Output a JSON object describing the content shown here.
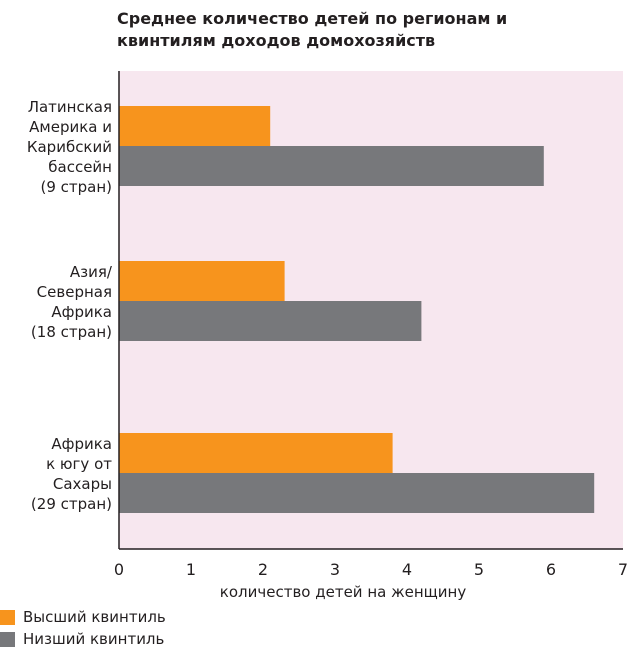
{
  "chart_data": {
    "type": "bar",
    "orientation": "horizontal",
    "title": "Среднее количество детей по регионам и квинтилям доходов домохозяйств",
    "title_lines": [
      "Среднее количество детей по регионам и",
      "квинтилям доходов домохозяйств"
    ],
    "xlabel": "количество детей на женщину",
    "ylabel": "",
    "xlim": [
      0,
      7
    ],
    "x_ticks": [
      "0",
      "1",
      "2",
      "3",
      "4",
      "5",
      "6",
      "7"
    ],
    "grid": false,
    "plot_background": "#f7e7ef",
    "legend_position": "bottom-left",
    "categories": [
      {
        "name": "Латинская Америка и Карибский бассейн (9 стран)",
        "label_lines": [
          "Латинская",
          "Америка и",
          "Карибский",
          "бассейн",
          "(9 стран)"
        ]
      },
      {
        "name": "Азия/ Северная Африка (18 стран)",
        "label_lines": [
          "Азия/",
          "Северная",
          "Африка",
          "(18 стран)"
        ]
      },
      {
        "name": "Африка к югу от Сахары (29 стран)",
        "label_lines": [
          "Африка",
          "к югу от",
          "Сахары",
          "(29 стран)"
        ]
      }
    ],
    "series": [
      {
        "name": "Высший квинтиль",
        "color": "#f7941d",
        "values": [
          2.1,
          2.3,
          3.8
        ]
      },
      {
        "name": "Низший квинтиль",
        "color": "#77787b",
        "values": [
          5.9,
          4.2,
          6.6
        ]
      }
    ]
  }
}
